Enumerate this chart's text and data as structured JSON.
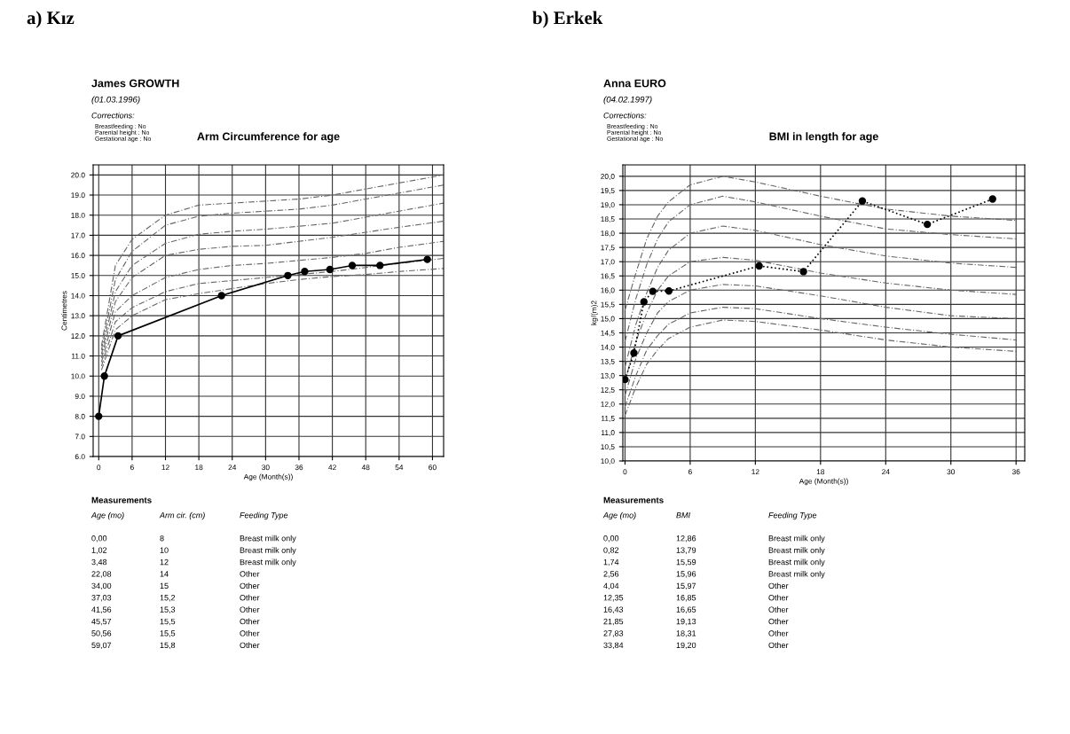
{
  "chart_data": [
    {
      "type": "line",
      "subtitle": "a) Kız",
      "title": "Arm Circumference for age",
      "xlabel": "Age (Month(s))",
      "ylabel": "Centimetres",
      "xlim": [
        -1,
        62
      ],
      "ylim": [
        6,
        20.5
      ],
      "xticks": [
        0,
        6,
        12,
        18,
        24,
        30,
        36,
        42,
        48,
        54,
        60
      ],
      "yticks": [
        {
          "value": 6,
          "label": "6.0"
        },
        {
          "value": 7,
          "label": "7.0"
        },
        {
          "value": 8,
          "label": "8.0"
        },
        {
          "value": 9,
          "label": "9.0"
        },
        {
          "value": 10,
          "label": "10.0"
        },
        {
          "value": 11,
          "label": "11.0"
        },
        {
          "value": 12,
          "label": "12.0"
        },
        {
          "value": 13,
          "label": "13.0"
        },
        {
          "value": 14,
          "label": "14.0"
        },
        {
          "value": 15,
          "label": "15.0"
        },
        {
          "value": 16,
          "label": "16.0"
        },
        {
          "value": 17,
          "label": "17.0"
        },
        {
          "value": 18,
          "label": "18.0"
        },
        {
          "value": 19,
          "label": "19.0"
        },
        {
          "value": 20,
          "label": "20.0"
        }
      ],
      "grid": true,
      "x": [
        0.5,
        3,
        6,
        12,
        18,
        24,
        30,
        36,
        42,
        48,
        54,
        62
      ],
      "series": [
        {
          "color": "#666666",
          "line_style": "dashed",
          "marker": "none",
          "values": [
            11.5,
            15.5,
            16.8,
            18.0,
            18.5,
            18.6,
            18.7,
            18.8,
            19.0,
            19.3,
            19.6,
            20.0
          ]
        },
        {
          "color": "#666666",
          "line_style": "dashed",
          "marker": "none",
          "values": [
            11.3,
            14.8,
            16.2,
            17.5,
            17.95,
            18.1,
            18.2,
            18.3,
            18.5,
            18.8,
            19.1,
            19.5
          ]
        },
        {
          "color": "#666666",
          "line_style": "dashed",
          "marker": "none",
          "values": [
            11.1,
            14.2,
            15.5,
            16.6,
            17.05,
            17.2,
            17.3,
            17.45,
            17.6,
            17.9,
            18.2,
            18.6
          ]
        },
        {
          "color": "#666666",
          "line_style": "dashed",
          "marker": "none",
          "values": [
            10.9,
            13.7,
            14.9,
            16.0,
            16.3,
            16.45,
            16.5,
            16.7,
            16.9,
            17.15,
            17.4,
            17.7
          ]
        },
        {
          "color": "#666666",
          "line_style": "dashed",
          "marker": "none",
          "values": [
            10.7,
            13.2,
            14.0,
            14.9,
            15.3,
            15.5,
            15.6,
            15.75,
            15.9,
            16.1,
            16.4,
            16.7
          ]
        },
        {
          "color": "#666666",
          "line_style": "dashed",
          "marker": "none",
          "values": [
            10.5,
            12.7,
            13.4,
            14.2,
            14.6,
            14.75,
            14.9,
            15.05,
            15.2,
            15.4,
            15.6,
            15.85
          ]
        },
        {
          "color": "#666666",
          "line_style": "dashed",
          "marker": "none",
          "values": [
            10.3,
            12.3,
            13.0,
            13.8,
            14.1,
            14.35,
            14.6,
            14.8,
            14.95,
            15.05,
            15.2,
            15.35
          ]
        },
        {
          "color": "#000000",
          "line_style": "solid",
          "marker": "circle",
          "x": [
            0,
            1.02,
            3.48,
            22.08,
            34,
            37.03,
            41.56,
            45.57,
            50.56,
            59.07
          ],
          "values": [
            8,
            10,
            12,
            14,
            15,
            15.2,
            15.3,
            15.5,
            15.5,
            15.8
          ]
        }
      ],
      "annotations": [
        "James GROWTH",
        "(01.03.1996)",
        "Corrections:",
        "Breastfeeding : No",
        "Parental height : No",
        "Gestational age : No",
        "Measurements",
        "Age (mo)",
        "Arm cir. (cm)",
        "Feeding Type",
        "0,00",
        "8",
        "Breast milk only",
        "1,02",
        "10",
        "Breast milk only",
        "3,48",
        "12",
        "Breast milk only",
        "22,08",
        "14",
        "Other",
        "34,00",
        "15",
        "Other",
        "37,03",
        "15,2",
        "Other",
        "41,56",
        "15,3",
        "Other",
        "45,57",
        "15,5",
        "Other",
        "50,56",
        "15,5",
        "Other",
        "59,07",
        "15,8",
        "Other"
      ]
    },
    {
      "type": "line",
      "subtitle": "b) Erkek",
      "title": "BMI in length for age",
      "xlabel": "Age (Month(s))",
      "ylabel": "kg/(m)2",
      "xlim": [
        -0.2,
        36.8
      ],
      "ylim": [
        10,
        20.4
      ],
      "xticks": [
        0,
        6,
        12,
        18,
        24,
        30,
        36
      ],
      "yticks": [
        {
          "value": 10,
          "label": "10,0"
        },
        {
          "value": 10.5,
          "label": "10,5"
        },
        {
          "value": 11,
          "label": "11,0"
        },
        {
          "value": 11.5,
          "label": "11,5"
        },
        {
          "value": 12,
          "label": "12,0"
        },
        {
          "value": 12.5,
          "label": "12,5"
        },
        {
          "value": 13,
          "label": "13,0"
        },
        {
          "value": 13.5,
          "label": "13,5"
        },
        {
          "value": 14,
          "label": "14,0"
        },
        {
          "value": 14.5,
          "label": "14,5"
        },
        {
          "value": 15,
          "label": "15,0"
        },
        {
          "value": 15.5,
          "label": "15,5"
        },
        {
          "value": 16,
          "label": "16,0"
        },
        {
          "value": 16.5,
          "label": "16,5"
        },
        {
          "value": 17,
          "label": "17,0"
        },
        {
          "value": 17.5,
          "label": "17,5"
        },
        {
          "value": 18,
          "label": "18,0"
        },
        {
          "value": 18.5,
          "label": "18,5"
        },
        {
          "value": 19,
          "label": "19,0"
        },
        {
          "value": 19.5,
          "label": "19,5"
        },
        {
          "value": 20,
          "label": "20,0"
        }
      ],
      "grid": true,
      "x": [
        0,
        1,
        2,
        3,
        4,
        6,
        9,
        12,
        18,
        24,
        30,
        36
      ],
      "series": [
        {
          "color": "#666666",
          "line_style": "dashed",
          "marker": "none",
          "values": [
            15.3,
            16.6,
            17.8,
            18.6,
            19.1,
            19.7,
            20.0,
            19.8,
            19.3,
            18.85,
            18.6,
            18.45
          ]
        },
        {
          "color": "#666666",
          "line_style": "dashed",
          "marker": "none",
          "values": [
            14.2,
            15.7,
            16.9,
            17.8,
            18.4,
            19.0,
            19.3,
            19.1,
            18.6,
            18.15,
            17.95,
            17.8
          ]
        },
        {
          "color": "#666666",
          "line_style": "dashed",
          "marker": "none",
          "values": [
            13.3,
            14.8,
            15.9,
            16.8,
            17.4,
            18.0,
            18.25,
            18.1,
            17.6,
            17.2,
            16.95,
            16.8
          ]
        },
        {
          "color": "#666666",
          "line_style": "dashed",
          "marker": "none",
          "values": [
            12.8,
            14.2,
            15.2,
            16.0,
            16.5,
            17.0,
            17.15,
            17.05,
            16.6,
            16.25,
            16.0,
            15.85
          ]
        },
        {
          "color": "#666666",
          "line_style": "dashed",
          "marker": "none",
          "values": [
            12.3,
            13.6,
            14.5,
            15.2,
            15.6,
            16.0,
            16.2,
            16.15,
            15.8,
            15.4,
            15.1,
            15.0
          ]
        },
        {
          "color": "#666666",
          "line_style": "dashed",
          "marker": "none",
          "values": [
            11.9,
            13.0,
            13.9,
            14.4,
            14.8,
            15.2,
            15.4,
            15.35,
            15.0,
            14.7,
            14.45,
            14.25
          ]
        },
        {
          "color": "#666666",
          "line_style": "dashed",
          "marker": "none",
          "values": [
            11.6,
            12.6,
            13.4,
            13.9,
            14.3,
            14.7,
            14.95,
            14.9,
            14.6,
            14.25,
            14.0,
            13.85
          ]
        },
        {
          "color": "#000000",
          "line_style": "dotted",
          "marker": "circle",
          "x": [
            0,
            0.82,
            1.74,
            2.56,
            4.04,
            12.35,
            16.43,
            21.85,
            27.83,
            33.84
          ],
          "values": [
            12.86,
            13.79,
            15.59,
            15.96,
            15.97,
            16.85,
            16.65,
            19.13,
            18.31,
            19.2
          ]
        }
      ],
      "annotations": [
        "Anna EURO",
        "(04.02.1997)",
        "Corrections:",
        "Breastfeeding : No",
        "Parental height : No",
        "Gestational age : No",
        "Measurements",
        "Age (mo)",
        "BMI",
        "Feeding Type",
        "0,00",
        "12,86",
        "Breast milk only",
        "0,82",
        "13,79",
        "Breast milk only",
        "1,74",
        "15,59",
        "Breast milk only",
        "2,56",
        "15,96",
        "Breast milk only",
        "4,04",
        "15,97",
        "Other",
        "12,35",
        "16,85",
        "Other",
        "16,43",
        "16,65",
        "Other",
        "21,85",
        "19,13",
        "Other",
        "27,83",
        "18,31",
        "Other",
        "33,84",
        "19,20",
        "Other"
      ]
    }
  ]
}
